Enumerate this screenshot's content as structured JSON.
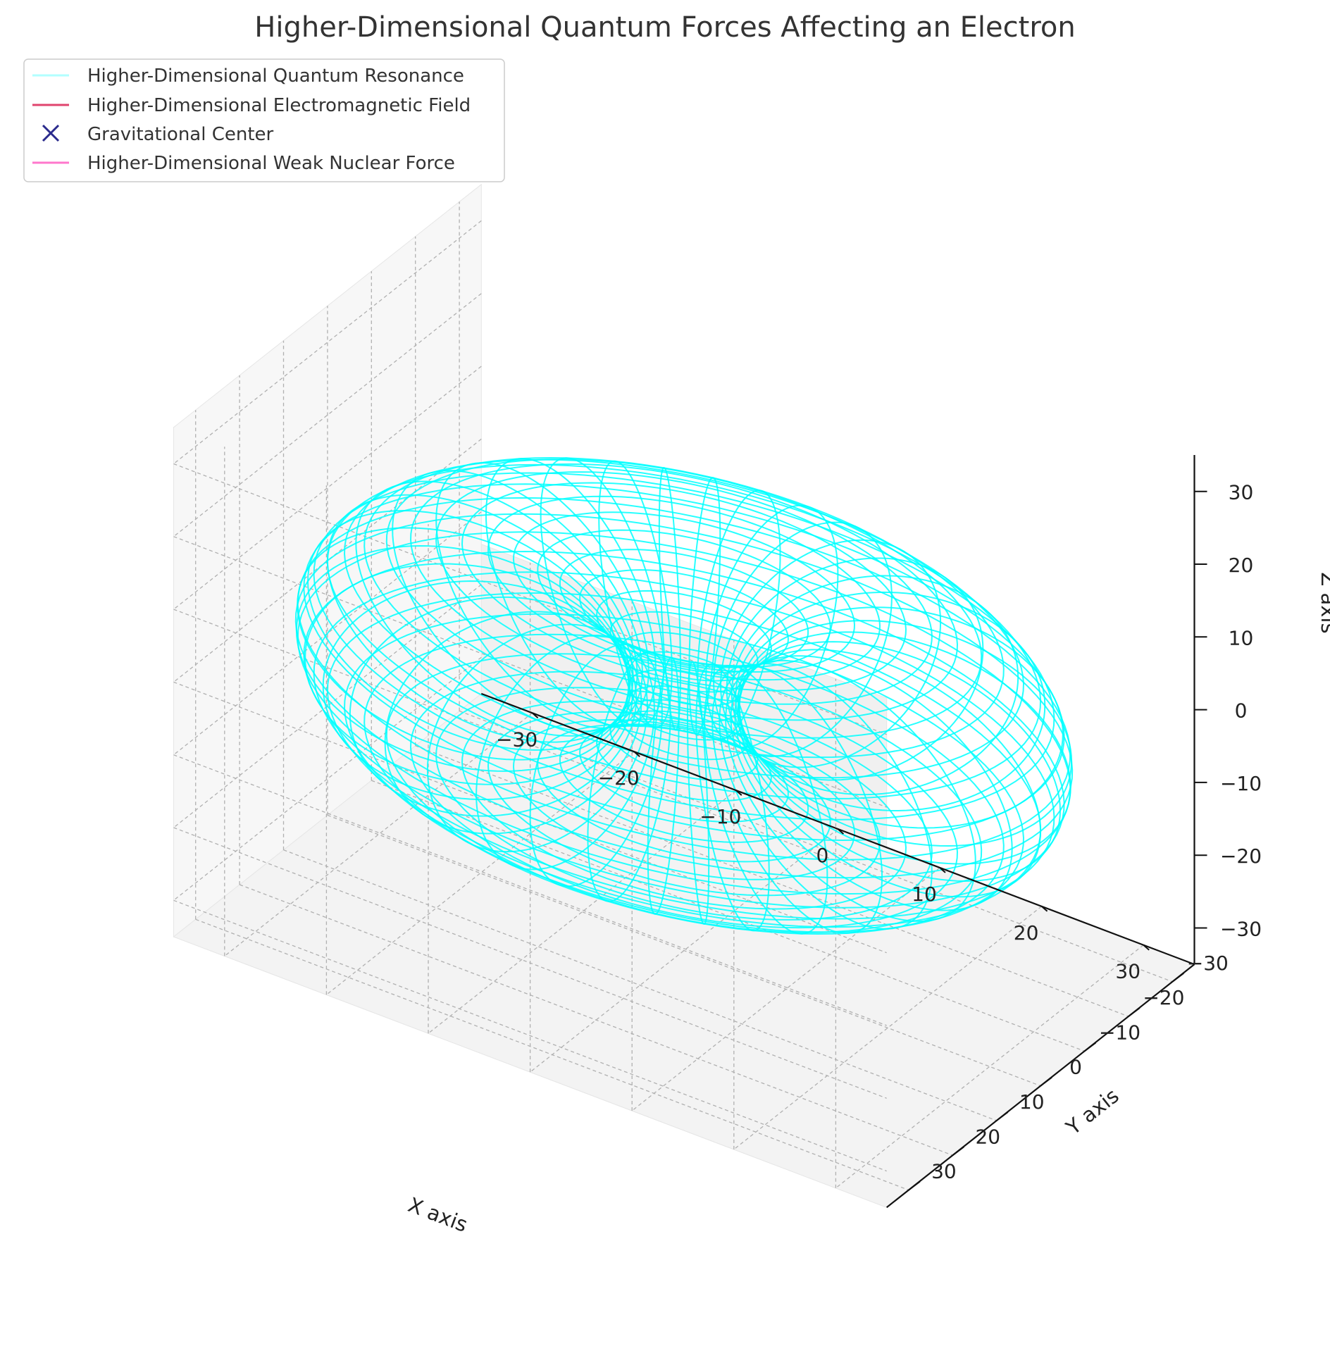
{
  "chart_data": {
    "type": "3d-wireframe",
    "title": "Higher-Dimensional Quantum Forces Affecting an Electron",
    "xlabel": "X axis",
    "ylabel": "Y axis",
    "zlabel": "Z axis",
    "xlim": [
      -35,
      35
    ],
    "ylim": [
      -35,
      35
    ],
    "zlim": [
      -35,
      35
    ],
    "xticks": [
      -30,
      -20,
      -10,
      0,
      10,
      20,
      30
    ],
    "yticks": [
      -30,
      -20,
      -10,
      0,
      10,
      20,
      30
    ],
    "zticks": [
      -30,
      -20,
      -10,
      0,
      10,
      20,
      30
    ],
    "xtick_labels": [
      "−30",
      "−20",
      "−10",
      "0",
      "10",
      "20",
      "30"
    ],
    "ytick_labels": [
      "−30",
      "−20",
      "−10",
      "0",
      "10",
      "20",
      "30"
    ],
    "ztick_labels": [
      "−30",
      "−20",
      "−10",
      "0",
      "10",
      "20",
      "30"
    ],
    "grid": true,
    "legend_position": "top-left",
    "series": [
      {
        "name": "Higher-Dimensional Quantum Resonance",
        "kind": "torus-wireframe",
        "color": "#00ffff",
        "major_radius": 20,
        "minor_radius": 15,
        "center": [
          0,
          0,
          0
        ]
      },
      {
        "name": "Higher-Dimensional Electromagnetic Field",
        "kind": "line",
        "color": "#e0446e"
      },
      {
        "name": "Gravitational Center",
        "kind": "marker",
        "marker": "x",
        "color": "#2a2a8c",
        "point": [
          0,
          0,
          0
        ]
      },
      {
        "name": "Higher-Dimensional Weak Nuclear Force",
        "kind": "line",
        "color": "#ff77cc"
      }
    ]
  }
}
